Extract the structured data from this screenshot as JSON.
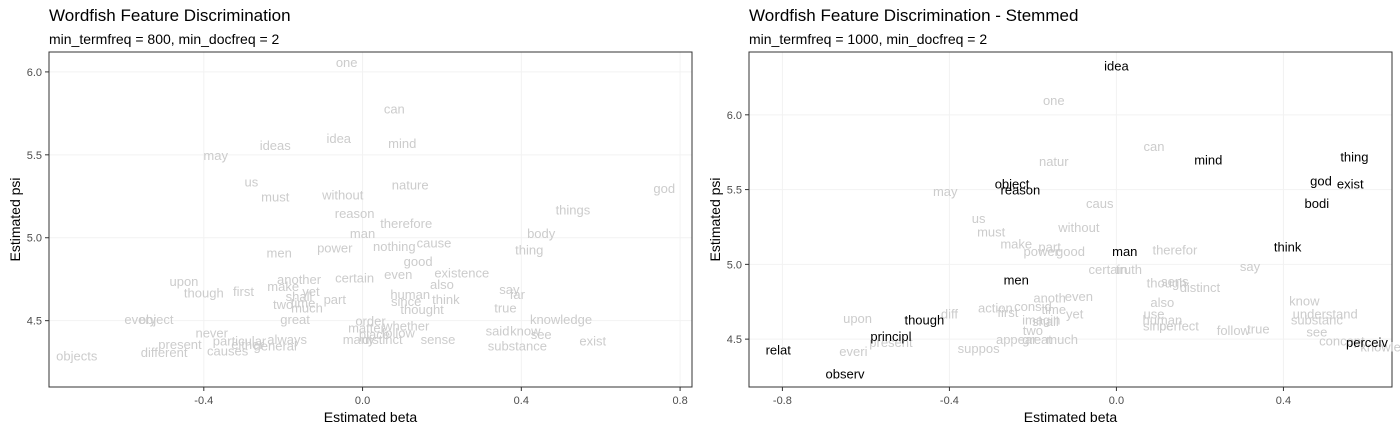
{
  "chart_data": [
    {
      "type": "scatter",
      "title": "Wordfish Feature Discrimination",
      "subtitle": "min_termfreq = 800, min_docfreq = 2",
      "xlabel": "Estimated beta",
      "ylabel": "Estimated psi",
      "xlim": [
        -0.79,
        0.83
      ],
      "ylim": [
        4.1,
        6.12
      ],
      "xticks": [
        -0.4,
        0.0,
        0.4,
        0.8
      ],
      "xtick_labels": [
        "-0.4",
        "0.0",
        "0.4",
        "0.8"
      ],
      "yticks": [
        4.5,
        5.0,
        5.5,
        6.0
      ],
      "ytick_labels": [
        "4.5",
        "5.0",
        "5.5",
        "6.0"
      ],
      "grid": true,
      "label_color": "#cccccc",
      "highlight_color": "#000000",
      "points": [
        {
          "label": "one",
          "x": -0.04,
          "y": 6.06,
          "highlight": false
        },
        {
          "label": "can",
          "x": 0.08,
          "y": 5.78,
          "highlight": false
        },
        {
          "label": "idea",
          "x": -0.06,
          "y": 5.6,
          "highlight": false
        },
        {
          "label": "mind",
          "x": 0.1,
          "y": 5.57,
          "highlight": false
        },
        {
          "label": "ideas",
          "x": -0.22,
          "y": 5.56,
          "highlight": false
        },
        {
          "label": "may",
          "x": -0.37,
          "y": 5.5,
          "highlight": false
        },
        {
          "label": "us",
          "x": -0.28,
          "y": 5.34,
          "highlight": false
        },
        {
          "label": "nature",
          "x": 0.12,
          "y": 5.32,
          "highlight": false
        },
        {
          "label": "god",
          "x": 0.76,
          "y": 5.3,
          "highlight": false
        },
        {
          "label": "without",
          "x": -0.05,
          "y": 5.26,
          "highlight": false
        },
        {
          "label": "must",
          "x": -0.22,
          "y": 5.25,
          "highlight": false
        },
        {
          "label": "things",
          "x": 0.53,
          "y": 5.17,
          "highlight": false
        },
        {
          "label": "reason",
          "x": -0.02,
          "y": 5.15,
          "highlight": false
        },
        {
          "label": "therefore",
          "x": 0.11,
          "y": 5.09,
          "highlight": false
        },
        {
          "label": "body",
          "x": 0.45,
          "y": 5.03,
          "highlight": false
        },
        {
          "label": "man",
          "x": 0.0,
          "y": 5.03,
          "highlight": false
        },
        {
          "label": "cause",
          "x": 0.18,
          "y": 4.97,
          "highlight": false
        },
        {
          "label": "nothing",
          "x": 0.08,
          "y": 4.95,
          "highlight": false
        },
        {
          "label": "power",
          "x": -0.07,
          "y": 4.94,
          "highlight": false
        },
        {
          "label": "thing",
          "x": 0.42,
          "y": 4.93,
          "highlight": false
        },
        {
          "label": "men",
          "x": -0.21,
          "y": 4.91,
          "highlight": false
        },
        {
          "label": "good",
          "x": 0.14,
          "y": 4.86,
          "highlight": false
        },
        {
          "label": "existence",
          "x": 0.25,
          "y": 4.79,
          "highlight": false
        },
        {
          "label": "even",
          "x": 0.09,
          "y": 4.78,
          "highlight": false
        },
        {
          "label": "certain",
          "x": -0.02,
          "y": 4.76,
          "highlight": false
        },
        {
          "label": "another",
          "x": -0.16,
          "y": 4.75,
          "highlight": false
        },
        {
          "label": "upon",
          "x": -0.45,
          "y": 4.74,
          "highlight": false
        },
        {
          "label": "also",
          "x": 0.2,
          "y": 4.72,
          "highlight": false
        },
        {
          "label": "make",
          "x": -0.2,
          "y": 4.71,
          "highlight": false
        },
        {
          "label": "say",
          "x": 0.37,
          "y": 4.69,
          "highlight": false
        },
        {
          "label": "first",
          "x": -0.3,
          "y": 4.68,
          "highlight": false
        },
        {
          "label": "yet",
          "x": -0.13,
          "y": 4.68,
          "highlight": false
        },
        {
          "label": "though",
          "x": -0.4,
          "y": 4.67,
          "highlight": false
        },
        {
          "label": "human",
          "x": 0.12,
          "y": 4.66,
          "highlight": false
        },
        {
          "label": "far",
          "x": 0.39,
          "y": 4.66,
          "highlight": false
        },
        {
          "label": "shall",
          "x": -0.16,
          "y": 4.65,
          "highlight": false
        },
        {
          "label": "think",
          "x": 0.21,
          "y": 4.63,
          "highlight": false
        },
        {
          "label": "part",
          "x": -0.07,
          "y": 4.63,
          "highlight": false
        },
        {
          "label": "since",
          "x": 0.11,
          "y": 4.62,
          "highlight": false
        },
        {
          "label": "time",
          "x": -0.15,
          "y": 4.61,
          "highlight": false
        },
        {
          "label": "two",
          "x": -0.2,
          "y": 4.6,
          "highlight": false
        },
        {
          "label": "true",
          "x": 0.36,
          "y": 4.58,
          "highlight": false
        },
        {
          "label": "much",
          "x": -0.14,
          "y": 4.58,
          "highlight": false
        },
        {
          "label": "thought",
          "x": 0.15,
          "y": 4.57,
          "highlight": false
        },
        {
          "label": "great",
          "x": -0.17,
          "y": 4.51,
          "highlight": false
        },
        {
          "label": "every",
          "x": -0.56,
          "y": 4.51,
          "highlight": false
        },
        {
          "label": "object",
          "x": -0.52,
          "y": 4.51,
          "highlight": false
        },
        {
          "label": "order",
          "x": 0.02,
          "y": 4.5,
          "highlight": false
        },
        {
          "label": "knowledge",
          "x": 0.5,
          "y": 4.51,
          "highlight": false
        },
        {
          "label": "matter",
          "x": 0.01,
          "y": 4.46,
          "highlight": false
        },
        {
          "label": "whether",
          "x": 0.11,
          "y": 4.47,
          "highlight": false
        },
        {
          "label": "said",
          "x": 0.34,
          "y": 4.44,
          "highlight": false
        },
        {
          "label": "know",
          "x": 0.41,
          "y": 4.44,
          "highlight": false
        },
        {
          "label": "follow",
          "x": 0.09,
          "y": 4.43,
          "highlight": false
        },
        {
          "label": "place",
          "x": 0.03,
          "y": 4.42,
          "highlight": false
        },
        {
          "label": "see",
          "x": 0.45,
          "y": 4.42,
          "highlight": false
        },
        {
          "label": "never",
          "x": -0.38,
          "y": 4.43,
          "highlight": false
        },
        {
          "label": "sense",
          "x": 0.19,
          "y": 4.39,
          "highlight": false
        },
        {
          "label": "many",
          "x": -0.01,
          "y": 4.39,
          "highlight": false
        },
        {
          "label": "distinct",
          "x": 0.05,
          "y": 4.39,
          "highlight": false
        },
        {
          "label": "always",
          "x": -0.19,
          "y": 4.39,
          "highlight": false
        },
        {
          "label": "exist",
          "x": 0.58,
          "y": 4.38,
          "highlight": false
        },
        {
          "label": "particular",
          "x": -0.31,
          "y": 4.38,
          "highlight": false
        },
        {
          "label": "present",
          "x": -0.46,
          "y": 4.36,
          "highlight": false
        },
        {
          "label": "either",
          "x": -0.29,
          "y": 4.36,
          "highlight": false
        },
        {
          "label": "substance",
          "x": 0.39,
          "y": 4.35,
          "highlight": false
        },
        {
          "label": "general",
          "x": -0.22,
          "y": 4.35,
          "highlight": false
        },
        {
          "label": "causes",
          "x": -0.34,
          "y": 4.32,
          "highlight": false
        },
        {
          "label": "different",
          "x": -0.5,
          "y": 4.31,
          "highlight": false
        },
        {
          "label": "objects",
          "x": -0.72,
          "y": 4.29,
          "highlight": false
        }
      ]
    },
    {
      "type": "scatter",
      "title": "Wordfish Feature Discrimination - Stemmed",
      "subtitle": "min_termfreq = 1000, min_docfreq = 2",
      "xlabel": "Estimated beta",
      "ylabel": "Estimated psi",
      "xlim": [
        -0.88,
        0.66
      ],
      "ylim": [
        4.18,
        6.42
      ],
      "xticks": [
        -0.8,
        -0.4,
        0.0,
        0.4
      ],
      "xtick_labels": [
        "-0.8",
        "-0.4",
        "0.0",
        "0.4"
      ],
      "yticks": [
        4.5,
        5.0,
        5.5,
        6.0
      ],
      "ytick_labels": [
        "4.5",
        "5.0",
        "5.5",
        "6.0"
      ],
      "grid": true,
      "label_color": "#cccccc",
      "highlight_color": "#000000",
      "points": [
        {
          "label": "idea",
          "x": 0.0,
          "y": 6.33,
          "highlight": true
        },
        {
          "label": "one",
          "x": -0.15,
          "y": 6.1,
          "highlight": false
        },
        {
          "label": "can",
          "x": 0.09,
          "y": 5.79,
          "highlight": false
        },
        {
          "label": "mind",
          "x": 0.22,
          "y": 5.7,
          "highlight": true
        },
        {
          "label": "thing",
          "x": 0.57,
          "y": 5.72,
          "highlight": true
        },
        {
          "label": "natur",
          "x": -0.15,
          "y": 5.69,
          "highlight": false
        },
        {
          "label": "god",
          "x": 0.49,
          "y": 5.56,
          "highlight": true
        },
        {
          "label": "exist",
          "x": 0.56,
          "y": 5.54,
          "highlight": true
        },
        {
          "label": "object",
          "x": -0.25,
          "y": 5.54,
          "highlight": true
        },
        {
          "label": "reason",
          "x": -0.23,
          "y": 5.5,
          "highlight": true
        },
        {
          "label": "may",
          "x": -0.41,
          "y": 5.49,
          "highlight": false
        },
        {
          "label": "bodi",
          "x": 0.48,
          "y": 5.41,
          "highlight": true
        },
        {
          "label": "caus",
          "x": -0.04,
          "y": 5.41,
          "highlight": false
        },
        {
          "label": "us",
          "x": -0.33,
          "y": 5.31,
          "highlight": false
        },
        {
          "label": "without",
          "x": -0.09,
          "y": 5.25,
          "highlight": false
        },
        {
          "label": "must",
          "x": -0.3,
          "y": 5.22,
          "highlight": false
        },
        {
          "label": "make",
          "x": -0.24,
          "y": 5.14,
          "highlight": false
        },
        {
          "label": "think",
          "x": 0.41,
          "y": 5.12,
          "highlight": true
        },
        {
          "label": "part",
          "x": -0.16,
          "y": 5.12,
          "highlight": false
        },
        {
          "label": "therefor",
          "x": 0.14,
          "y": 5.1,
          "highlight": false
        },
        {
          "label": "power",
          "x": -0.18,
          "y": 5.09,
          "highlight": false
        },
        {
          "label": "good",
          "x": -0.11,
          "y": 5.09,
          "highlight": false
        },
        {
          "label": "man",
          "x": 0.02,
          "y": 5.09,
          "highlight": true
        },
        {
          "label": "say",
          "x": 0.32,
          "y": 4.99,
          "highlight": false
        },
        {
          "label": "certain",
          "x": -0.02,
          "y": 4.97,
          "highlight": false
        },
        {
          "label": "truth",
          "x": 0.03,
          "y": 4.97,
          "highlight": false
        },
        {
          "label": "men",
          "x": -0.24,
          "y": 4.9,
          "highlight": true
        },
        {
          "label": "sens",
          "x": 0.14,
          "y": 4.89,
          "highlight": false
        },
        {
          "label": "though",
          "x": 0.12,
          "y": 4.88,
          "highlight": false
        },
        {
          "label": "distinct",
          "x": 0.2,
          "y": 4.85,
          "highlight": false
        },
        {
          "label": "anoth",
          "x": -0.16,
          "y": 4.78,
          "highlight": false
        },
        {
          "label": "even",
          "x": -0.09,
          "y": 4.79,
          "highlight": false
        },
        {
          "label": "know",
          "x": 0.45,
          "y": 4.76,
          "highlight": false
        },
        {
          "label": "also",
          "x": 0.11,
          "y": 4.75,
          "highlight": false
        },
        {
          "label": "action",
          "x": -0.29,
          "y": 4.71,
          "highlight": false
        },
        {
          "label": "first",
          "x": -0.26,
          "y": 4.68,
          "highlight": false
        },
        {
          "label": "consid",
          "x": -0.2,
          "y": 4.72,
          "highlight": false
        },
        {
          "label": "time",
          "x": -0.15,
          "y": 4.7,
          "highlight": false
        },
        {
          "label": "yet",
          "x": -0.1,
          "y": 4.67,
          "highlight": false
        },
        {
          "label": "use",
          "x": 0.09,
          "y": 4.67,
          "highlight": false
        },
        {
          "label": "understand",
          "x": 0.5,
          "y": 4.67,
          "highlight": false
        },
        {
          "label": "upon",
          "x": -0.62,
          "y": 4.64,
          "highlight": false
        },
        {
          "label": "though",
          "x": -0.46,
          "y": 4.63,
          "highlight": true
        },
        {
          "label": "diff",
          "x": -0.4,
          "y": 4.67,
          "highlight": false
        },
        {
          "label": "imagin",
          "x": -0.18,
          "y": 4.63,
          "highlight": false
        },
        {
          "label": "shall",
          "x": -0.17,
          "y": 4.62,
          "highlight": false
        },
        {
          "label": "human",
          "x": 0.11,
          "y": 4.63,
          "highlight": false
        },
        {
          "label": "substanc",
          "x": 0.48,
          "y": 4.63,
          "highlight": false
        },
        {
          "label": "since",
          "x": 0.1,
          "y": 4.59,
          "highlight": false
        },
        {
          "label": "perfect",
          "x": 0.15,
          "y": 4.59,
          "highlight": false
        },
        {
          "label": "true",
          "x": 0.34,
          "y": 4.57,
          "highlight": false
        },
        {
          "label": "follow",
          "x": 0.28,
          "y": 4.56,
          "highlight": false
        },
        {
          "label": "see",
          "x": 0.48,
          "y": 4.55,
          "highlight": false
        },
        {
          "label": "two",
          "x": -0.2,
          "y": 4.56,
          "highlight": false
        },
        {
          "label": "principl",
          "x": -0.54,
          "y": 4.52,
          "highlight": true
        },
        {
          "label": "appear",
          "x": -0.24,
          "y": 4.5,
          "highlight": false
        },
        {
          "label": "great",
          "x": -0.19,
          "y": 4.5,
          "highlight": false
        },
        {
          "label": "much",
          "x": -0.13,
          "y": 4.5,
          "highlight": false
        },
        {
          "label": "present",
          "x": -0.54,
          "y": 4.48,
          "highlight": false
        },
        {
          "label": "concept",
          "x": 0.54,
          "y": 4.49,
          "highlight": false
        },
        {
          "label": "perceiv",
          "x": 0.6,
          "y": 4.48,
          "highlight": true
        },
        {
          "label": "knowledg",
          "x": 0.65,
          "y": 4.45,
          "highlight": false
        },
        {
          "label": "suppos",
          "x": -0.33,
          "y": 4.44,
          "highlight": false
        },
        {
          "label": "everi",
          "x": -0.63,
          "y": 4.42,
          "highlight": false
        },
        {
          "label": "relat",
          "x": -0.81,
          "y": 4.43,
          "highlight": true
        },
        {
          "label": "observ",
          "x": -0.65,
          "y": 4.27,
          "highlight": true
        }
      ]
    }
  ]
}
